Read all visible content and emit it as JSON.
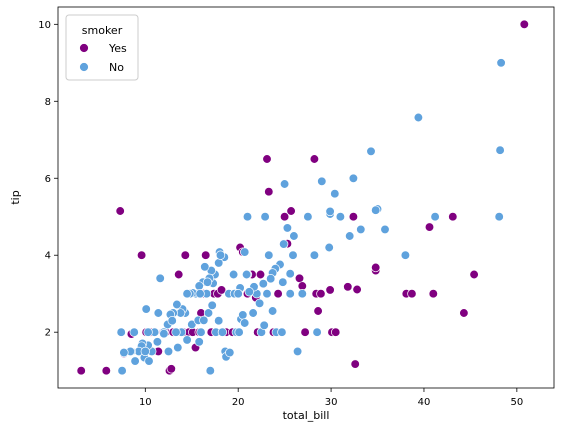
{
  "chart_data": {
    "type": "scatter",
    "title": "",
    "xlabel": "total_bill",
    "ylabel": "tip",
    "xlim": [
      0.6,
      54.0
    ],
    "ylim": [
      0.55,
      10.45
    ],
    "xticks": [
      10,
      20,
      30,
      40,
      50
    ],
    "yticks": [
      2,
      4,
      6,
      8,
      10
    ],
    "grid": false,
    "legend": {
      "title": "smoker",
      "position": "top-left",
      "entries": [
        {
          "label": "Yes",
          "color": "#800080"
        },
        {
          "label": "No",
          "color": "#5fa2dd"
        }
      ]
    },
    "series": [
      {
        "name": "Yes",
        "color": "#800080",
        "points": [
          [
            50.8,
            10.0
          ],
          [
            3.1,
            1.0
          ],
          [
            5.8,
            1.0
          ],
          [
            7.3,
            5.15
          ],
          [
            9.6,
            4.0
          ],
          [
            8.5,
            1.95
          ],
          [
            7.7,
            1.45
          ],
          [
            10.1,
            2.0
          ],
          [
            10.6,
            2.0
          ],
          [
            10.3,
            1.6
          ],
          [
            11.4,
            1.5
          ],
          [
            11.9,
            2.0
          ],
          [
            12.2,
            2.0
          ],
          [
            12.6,
            1.0
          ],
          [
            12.8,
            1.05
          ],
          [
            13.0,
            2.0
          ],
          [
            13.4,
            2.0
          ],
          [
            13.6,
            3.5
          ],
          [
            14.1,
            2.0
          ],
          [
            14.3,
            4.0
          ],
          [
            14.7,
            2.0
          ],
          [
            15.1,
            2.0
          ],
          [
            15.4,
            1.6
          ],
          [
            15.5,
            3.0
          ],
          [
            15.8,
            2.0
          ],
          [
            16.0,
            2.5
          ],
          [
            16.3,
            3.0
          ],
          [
            16.5,
            4.0
          ],
          [
            17.1,
            2.0
          ],
          [
            17.4,
            3.0
          ],
          [
            17.8,
            3.0
          ],
          [
            18.2,
            3.1
          ],
          [
            18.7,
            2.0
          ],
          [
            19.4,
            2.0
          ],
          [
            19.8,
            3.0
          ],
          [
            20.2,
            4.2
          ],
          [
            20.5,
            4.08
          ],
          [
            21.0,
            3.0
          ],
          [
            21.5,
            3.5
          ],
          [
            21.9,
            2.9
          ],
          [
            22.1,
            2.0
          ],
          [
            22.4,
            3.5
          ],
          [
            23.1,
            6.5
          ],
          [
            23.3,
            5.65
          ],
          [
            23.8,
            2.0
          ],
          [
            24.3,
            3.0
          ],
          [
            25.0,
            5.0
          ],
          [
            25.3,
            4.3
          ],
          [
            25.7,
            5.15
          ],
          [
            26.6,
            3.4
          ],
          [
            26.9,
            3.2
          ],
          [
            27.2,
            2.0
          ],
          [
            28.2,
            6.5
          ],
          [
            28.4,
            3.0
          ],
          [
            28.6,
            2.55
          ],
          [
            28.9,
            3.0
          ],
          [
            29.9,
            3.1
          ],
          [
            30.1,
            2.0
          ],
          [
            30.5,
            2.0
          ],
          [
            31.8,
            3.18
          ],
          [
            32.4,
            5.0
          ],
          [
            32.6,
            1.17
          ],
          [
            32.8,
            3.11
          ],
          [
            34.8,
            3.6
          ],
          [
            34.8,
            3.68
          ],
          [
            38.1,
            3.0
          ],
          [
            38.7,
            3.0
          ],
          [
            40.6,
            4.73
          ],
          [
            41.0,
            3.0
          ],
          [
            43.1,
            5.0
          ],
          [
            44.3,
            2.5
          ],
          [
            45.4,
            3.5
          ]
        ]
      },
      {
        "name": "No",
        "color": "#5fa2dd",
        "points": [
          [
            48.3,
            9.0
          ],
          [
            48.2,
            6.73
          ],
          [
            48.1,
            5.0
          ],
          [
            39.4,
            7.58
          ],
          [
            34.3,
            6.7
          ],
          [
            32.4,
            6.0
          ],
          [
            30.4,
            5.6
          ],
          [
            29.0,
            5.92
          ],
          [
            25.0,
            5.85
          ],
          [
            35.8,
            4.67
          ],
          [
            35.0,
            5.2
          ],
          [
            34.8,
            5.17
          ],
          [
            31.0,
            5.0
          ],
          [
            29.9,
            5.07
          ],
          [
            29.9,
            5.14
          ],
          [
            27.5,
            5.0
          ],
          [
            25.3,
            4.71
          ],
          [
            24.9,
            4.29
          ],
          [
            23.3,
            4.0
          ],
          [
            21.0,
            5.0
          ],
          [
            22.9,
            5.0
          ],
          [
            38.0,
            4.0
          ],
          [
            41.2,
            5.0
          ],
          [
            33.2,
            4.67
          ],
          [
            32.0,
            4.5
          ],
          [
            29.8,
            4.2
          ],
          [
            28.2,
            4.0
          ],
          [
            26.0,
            4.5
          ],
          [
            25.9,
            4.0
          ],
          [
            25.6,
            3.52
          ],
          [
            24.5,
            3.76
          ],
          [
            24.0,
            3.65
          ],
          [
            23.7,
            3.54
          ],
          [
            23.5,
            3.39
          ],
          [
            22.7,
            3.26
          ],
          [
            22.0,
            3.0
          ],
          [
            21.7,
            3.18
          ],
          [
            21.0,
            3.5
          ],
          [
            20.7,
            4.08
          ],
          [
            20.2,
            3.15
          ],
          [
            19.9,
            3.0
          ],
          [
            19.5,
            3.5
          ],
          [
            19.0,
            3.0
          ],
          [
            18.5,
            3.95
          ],
          [
            18.0,
            4.08
          ],
          [
            17.9,
            3.8
          ],
          [
            17.5,
            3.5
          ],
          [
            17.3,
            3.27
          ],
          [
            17.1,
            3.6
          ],
          [
            16.9,
            3.4
          ],
          [
            16.6,
            3.0
          ],
          [
            16.4,
            3.7
          ],
          [
            16.2,
            3.3
          ],
          [
            15.8,
            3.2
          ],
          [
            15.4,
            3.0
          ],
          [
            15.1,
            3.02
          ],
          [
            14.8,
            3.0
          ],
          [
            14.5,
            3.0
          ],
          [
            14.3,
            2.5
          ],
          [
            14.0,
            2.6
          ],
          [
            13.8,
            2.5
          ],
          [
            13.4,
            2.72
          ],
          [
            13.0,
            2.5
          ],
          [
            12.7,
            2.46
          ],
          [
            12.4,
            2.2
          ],
          [
            12.0,
            2.0
          ],
          [
            11.6,
            3.4
          ],
          [
            11.4,
            2.5
          ],
          [
            11.0,
            2.0
          ],
          [
            10.7,
            1.5
          ],
          [
            10.3,
            1.66
          ],
          [
            10.1,
            2.6
          ],
          [
            9.7,
            1.71
          ],
          [
            9.6,
            1.64
          ],
          [
            9.3,
            1.5
          ],
          [
            8.8,
            2.0
          ],
          [
            8.5,
            1.5
          ],
          [
            8.4,
            1.5
          ],
          [
            7.7,
            1.47
          ],
          [
            7.5,
            1.0
          ],
          [
            7.4,
            2.0
          ],
          [
            10.3,
            2.0
          ],
          [
            12.0,
            1.96
          ],
          [
            13.9,
            2.0
          ],
          [
            15.0,
            2.2
          ],
          [
            15.7,
            2.31
          ],
          [
            16.0,
            2.0
          ],
          [
            16.3,
            2.31
          ],
          [
            17.6,
            2.0
          ],
          [
            17.9,
            2.3
          ],
          [
            18.3,
            2.0
          ],
          [
            18.6,
            1.5
          ],
          [
            18.7,
            1.36
          ],
          [
            19.1,
            1.47
          ],
          [
            19.8,
            2.0
          ],
          [
            20.1,
            2.0
          ],
          [
            20.3,
            2.34
          ],
          [
            20.5,
            2.45
          ],
          [
            20.7,
            2.24
          ],
          [
            21.6,
            2.5
          ],
          [
            22.5,
            2.0
          ],
          [
            22.8,
            2.18
          ],
          [
            23.7,
            2.55
          ],
          [
            24.1,
            2.0
          ],
          [
            24.7,
            2.0
          ],
          [
            26.4,
            1.5
          ],
          [
            28.5,
            2.0
          ],
          [
            17.0,
            1.0
          ],
          [
            18.1,
            4.0
          ],
          [
            20.9,
            3.5
          ],
          [
            22.3,
            2.75
          ],
          [
            25.6,
            3.0
          ],
          [
            26.9,
            3.0
          ],
          [
            12.5,
            1.5
          ],
          [
            13.5,
            1.6
          ],
          [
            9.9,
            1.34
          ],
          [
            10.4,
            1.25
          ],
          [
            11.3,
            1.75
          ],
          [
            14.5,
            1.8
          ],
          [
            16.8,
            2.5
          ],
          [
            19.6,
            3.0
          ],
          [
            20.0,
            3.0
          ],
          [
            17.2,
            2.7
          ],
          [
            15.8,
            1.75
          ],
          [
            21.2,
            3.05
          ],
          [
            23.1,
            3.0
          ],
          [
            24.8,
            3.3
          ],
          [
            8.9,
            1.25
          ],
          [
            10.0,
            1.5
          ],
          [
            12.9,
            2.3
          ],
          [
            13.3,
            2.0
          ],
          [
            15.9,
            3.0
          ],
          [
            16.7,
            3.3
          ]
        ]
      }
    ]
  }
}
